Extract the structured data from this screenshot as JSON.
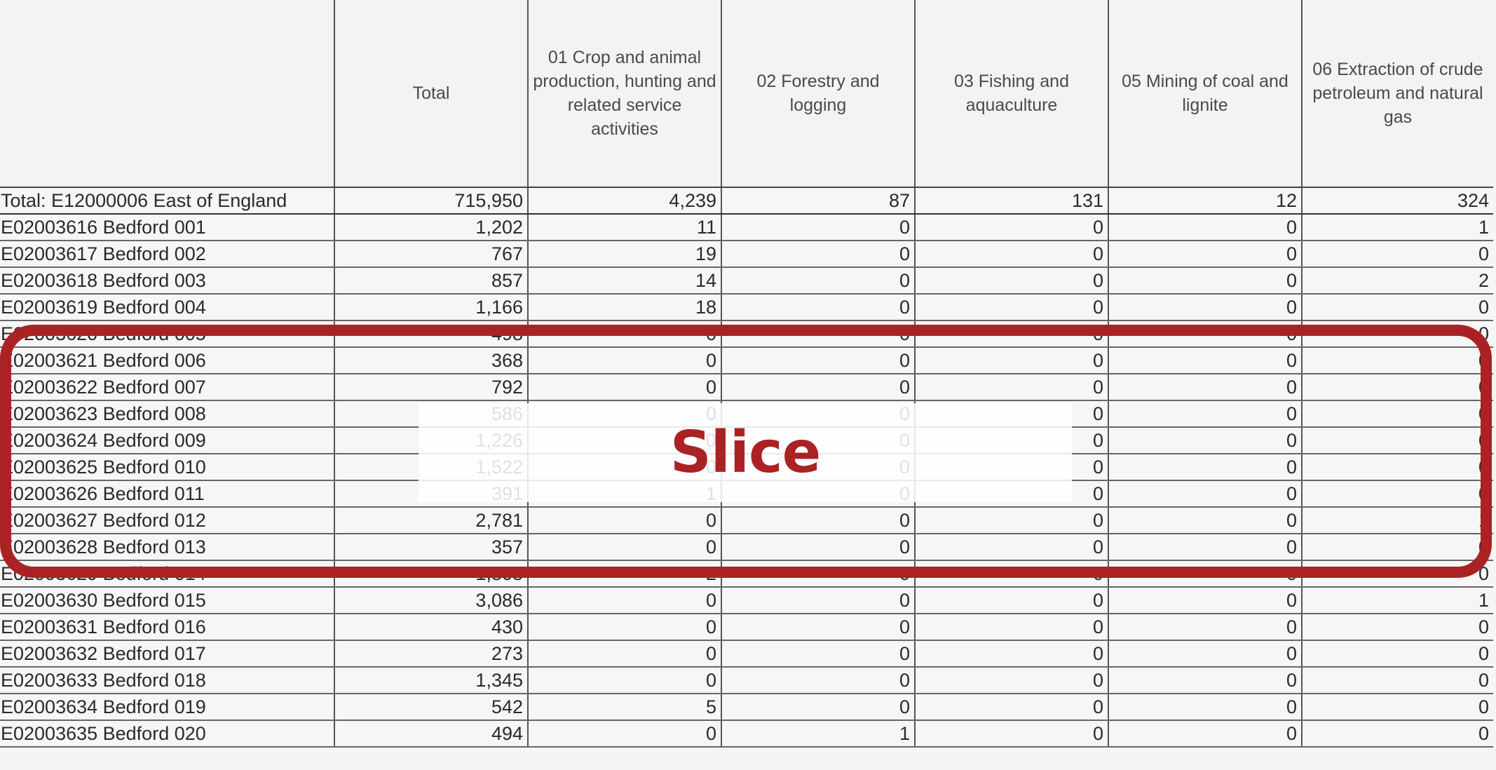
{
  "table": {
    "headers": [
      "",
      "Total",
      "01 Crop and animal production, hunting and related service activities",
      "02 Forestry and logging",
      "03 Fishing and aquaculture",
      "05 Mining of coal and lignite",
      "06 Extraction of crude petroleum and natural gas"
    ],
    "rows": [
      [
        "Total: E12000006 East of England",
        "715,950",
        "4,239",
        "87",
        "131",
        "12",
        "324"
      ],
      [
        "E02003616 Bedford 001",
        "1,202",
        "11",
        "0",
        "0",
        "0",
        "1"
      ],
      [
        "E02003617 Bedford 002",
        "767",
        "19",
        "0",
        "0",
        "0",
        "0"
      ],
      [
        "E02003618 Bedford 003",
        "857",
        "14",
        "0",
        "0",
        "0",
        "2"
      ],
      [
        "E02003619 Bedford 004",
        "1,166",
        "18",
        "0",
        "0",
        "0",
        "0"
      ],
      [
        "E02003620 Bedford 005",
        "498",
        "0",
        "0",
        "0",
        "0",
        "0"
      ],
      [
        "E02003621 Bedford 006",
        "368",
        "0",
        "0",
        "0",
        "0",
        "0"
      ],
      [
        "E02003622 Bedford 007",
        "792",
        "0",
        "0",
        "0",
        "0",
        "0"
      ],
      [
        "E02003623 Bedford 008",
        "586",
        "0",
        "0",
        "0",
        "0",
        "0"
      ],
      [
        "E02003624 Bedford 009",
        "1,226",
        "0",
        "0",
        "0",
        "0",
        "0"
      ],
      [
        "E02003625 Bedford 010",
        "1,522",
        "0",
        "0",
        "0",
        "0",
        "0"
      ],
      [
        "E02003626 Bedford 011",
        "391",
        "1",
        "0",
        "0",
        "0",
        "0"
      ],
      [
        "E02003627 Bedford 012",
        "2,781",
        "0",
        "0",
        "0",
        "0",
        "1"
      ],
      [
        "E02003628 Bedford 013",
        "357",
        "0",
        "0",
        "0",
        "0",
        "0"
      ],
      [
        "E02003629 Bedford 014",
        "1,808",
        "2",
        "0",
        "0",
        "0",
        "0"
      ],
      [
        "E02003630 Bedford 015",
        "3,086",
        "0",
        "0",
        "0",
        "0",
        "1"
      ],
      [
        "E02003631 Bedford 016",
        "430",
        "0",
        "0",
        "0",
        "0",
        "0"
      ],
      [
        "E02003632 Bedford 017",
        "273",
        "0",
        "0",
        "0",
        "0",
        "0"
      ],
      [
        "E02003633 Bedford 018",
        "1,345",
        "0",
        "0",
        "0",
        "0",
        "0"
      ],
      [
        "E02003634 Bedford 019",
        "542",
        "5",
        "0",
        "0",
        "0",
        "0"
      ],
      [
        "E02003635 Bedford 020",
        "494",
        "0",
        "1",
        "0",
        "0",
        "0"
      ]
    ]
  },
  "overlay": {
    "label": "Slice",
    "color": "#ab2224"
  }
}
